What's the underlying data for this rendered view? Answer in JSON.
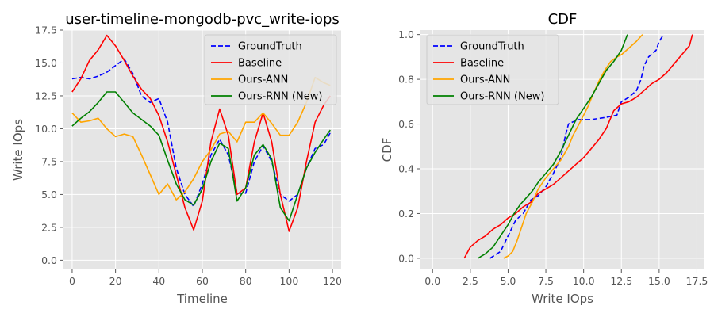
{
  "chart_data": [
    {
      "type": "line",
      "title": "user-timeline-mongodb-pvc_write-iops",
      "xlabel": "Timeline",
      "ylabel": "Write IOps",
      "xlim": [
        -4,
        124
      ],
      "ylim": [
        -0.7,
        17.5
      ],
      "xticks": [
        0,
        20,
        40,
        60,
        80,
        100,
        120
      ],
      "yticks": [
        0.0,
        2.5,
        5.0,
        7.5,
        10.0,
        12.5,
        15.0,
        17.5
      ],
      "xtick_labels": [
        "0",
        "20",
        "40",
        "60",
        "80",
        "100",
        "120"
      ],
      "ytick_labels": [
        "0.0",
        "2.5",
        "5.0",
        "7.5",
        "10.0",
        "12.5",
        "15.0",
        "17.5"
      ],
      "grid": true,
      "legend_position": "top-right",
      "x": [
        0,
        4,
        8,
        12,
        16,
        20,
        24,
        28,
        32,
        36,
        40,
        44,
        48,
        52,
        56,
        60,
        64,
        68,
        72,
        76,
        80,
        84,
        88,
        92,
        96,
        100,
        104,
        108,
        112,
        116,
        119
      ],
      "series": [
        {
          "name": "GroundTruth",
          "color": "#0000ff",
          "dash": "dashed",
          "values": [
            13.8,
            13.9,
            13.8,
            14.0,
            14.3,
            14.8,
            15.3,
            14.2,
            12.5,
            12.0,
            12.3,
            10.5,
            7.0,
            5.0,
            4.1,
            5.8,
            8.0,
            9.2,
            8.0,
            5.1,
            5.1,
            7.5,
            8.7,
            7.5,
            5.0,
            4.5,
            5.0,
            7.0,
            8.5,
            8.8,
            9.7
          ]
        },
        {
          "name": "Baseline",
          "color": "#ff0000",
          "dash": "solid",
          "values": [
            12.8,
            13.8,
            15.2,
            16.0,
            17.1,
            16.3,
            15.2,
            14.0,
            13.0,
            12.3,
            11.0,
            9.0,
            6.5,
            4.0,
            2.3,
            4.5,
            9.0,
            11.5,
            9.5,
            5.0,
            5.5,
            9.0,
            11.2,
            9.0,
            5.0,
            2.2,
            4.0,
            7.5,
            10.5,
            11.8,
            12.5
          ]
        },
        {
          "name": "Ours-ANN",
          "color": "#ffa500",
          "dash": "solid",
          "values": [
            11.2,
            10.5,
            10.6,
            10.8,
            10.0,
            9.4,
            9.6,
            9.4,
            8.0,
            6.5,
            5.0,
            5.8,
            4.6,
            5.2,
            6.2,
            7.5,
            8.4,
            9.6,
            9.8,
            9.0,
            10.5,
            10.5,
            11.2,
            10.4,
            9.5,
            9.5,
            10.5,
            12.0,
            13.9,
            13.5,
            13.3
          ]
        },
        {
          "name": "Ours-RNN (New)",
          "color": "#008000",
          "dash": "solid",
          "values": [
            10.2,
            10.8,
            11.3,
            12.0,
            12.8,
            12.8,
            12.0,
            11.2,
            10.7,
            10.2,
            9.5,
            7.6,
            5.8,
            4.6,
            4.2,
            5.4,
            7.5,
            8.9,
            8.5,
            4.5,
            5.5,
            8.0,
            8.8,
            7.7,
            4.0,
            3.0,
            5.0,
            7.0,
            8.2,
            9.2,
            9.9
          ]
        }
      ]
    },
    {
      "type": "line",
      "title": "CDF",
      "xlabel": "Write IOps",
      "ylabel": "CDF",
      "xlim": [
        -0.8,
        18.0
      ],
      "ylim": [
        -0.05,
        1.02
      ],
      "xticks": [
        0.0,
        2.5,
        5.0,
        7.5,
        10.0,
        12.5,
        15.0,
        17.5
      ],
      "yticks": [
        0.0,
        0.2,
        0.4,
        0.6,
        0.8,
        1.0
      ],
      "xtick_labels": [
        "0.0",
        "2.5",
        "5.0",
        "7.5",
        "10.0",
        "12.5",
        "15.0",
        "17.5"
      ],
      "ytick_labels": [
        "0.0",
        "0.2",
        "0.4",
        "0.6",
        "0.8",
        "1.0"
      ],
      "grid": true,
      "legend_position": "top-left",
      "series": [
        {
          "name": "GroundTruth",
          "color": "#0000ff",
          "dash": "dashed",
          "x": [
            3.8,
            4.5,
            5.0,
            5.5,
            6.0,
            6.5,
            7.0,
            7.5,
            8.0,
            8.5,
            8.8,
            9.0,
            9.3,
            9.7,
            10.5,
            11.5,
            12.2,
            12.5,
            13.0,
            13.5,
            13.8,
            14.0,
            14.3,
            14.8,
            15.0,
            15.3
          ],
          "y": [
            0.0,
            0.03,
            0.1,
            0.17,
            0.2,
            0.26,
            0.28,
            0.32,
            0.38,
            0.45,
            0.55,
            0.6,
            0.61,
            0.62,
            0.62,
            0.63,
            0.64,
            0.7,
            0.72,
            0.75,
            0.8,
            0.86,
            0.9,
            0.93,
            0.97,
            1.0
          ]
        },
        {
          "name": "Baseline",
          "color": "#ff0000",
          "dash": "solid",
          "x": [
            2.1,
            2.5,
            3.0,
            3.5,
            4.0,
            4.5,
            5.0,
            5.5,
            6.0,
            6.5,
            7.0,
            7.5,
            8.0,
            8.5,
            9.0,
            9.5,
            10.0,
            10.5,
            11.0,
            11.5,
            12.0,
            12.5,
            13.0,
            13.5,
            14.0,
            14.5,
            15.0,
            15.5,
            16.0,
            16.5,
            17.0,
            17.2
          ],
          "y": [
            0.0,
            0.05,
            0.08,
            0.1,
            0.13,
            0.15,
            0.18,
            0.2,
            0.23,
            0.25,
            0.29,
            0.31,
            0.33,
            0.36,
            0.39,
            0.42,
            0.45,
            0.49,
            0.53,
            0.58,
            0.66,
            0.69,
            0.7,
            0.72,
            0.75,
            0.78,
            0.8,
            0.83,
            0.87,
            0.91,
            0.95,
            1.0
          ]
        },
        {
          "name": "Ours-ANN",
          "color": "#ffa500",
          "dash": "solid",
          "x": [
            4.7,
            5.0,
            5.3,
            5.6,
            5.9,
            6.2,
            6.6,
            7.0,
            7.5,
            8.0,
            8.5,
            9.0,
            9.3,
            9.7,
            10.0,
            10.3,
            10.6,
            11.0,
            11.4,
            11.8,
            12.2,
            12.5,
            13.0,
            13.5,
            13.9
          ],
          "y": [
            0.0,
            0.01,
            0.03,
            0.08,
            0.14,
            0.2,
            0.25,
            0.31,
            0.36,
            0.4,
            0.44,
            0.5,
            0.55,
            0.6,
            0.64,
            0.68,
            0.73,
            0.79,
            0.84,
            0.88,
            0.9,
            0.91,
            0.94,
            0.97,
            1.0
          ]
        },
        {
          "name": "Ours-RNN (New)",
          "color": "#008000",
          "dash": "solid",
          "x": [
            3.0,
            3.5,
            4.0,
            4.3,
            4.6,
            5.0,
            5.4,
            5.8,
            6.2,
            6.6,
            7.0,
            7.5,
            8.0,
            8.5,
            9.0,
            9.5,
            10.0,
            10.5,
            11.0,
            11.5,
            12.0,
            12.5,
            12.9
          ],
          "y": [
            0.0,
            0.02,
            0.05,
            0.08,
            0.11,
            0.15,
            0.2,
            0.24,
            0.27,
            0.3,
            0.34,
            0.38,
            0.42,
            0.48,
            0.55,
            0.62,
            0.67,
            0.72,
            0.78,
            0.84,
            0.88,
            0.93,
            1.0
          ]
        }
      ]
    }
  ]
}
